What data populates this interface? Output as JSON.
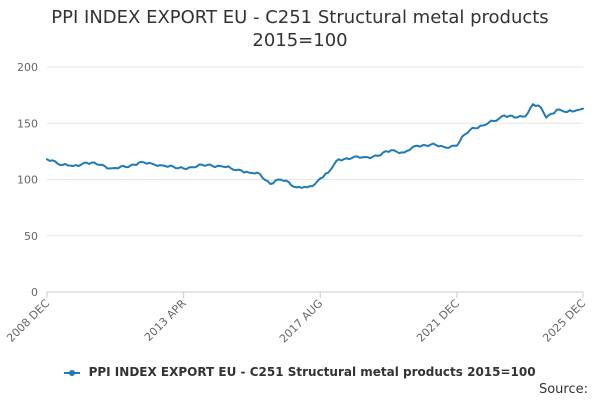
{
  "chart_data": {
    "type": "line",
    "title": "PPI INDEX EXPORT EU - C251 Structural metal products",
    "subtitle": "2015=100",
    "ylim": [
      0,
      200
    ],
    "y_ticks": [
      "0",
      "50",
      "100",
      "150",
      "200"
    ],
    "x_ticks": [
      "2008 DEC",
      "2013 APR",
      "2017 AUG",
      "2021 DEC",
      "2025 DEC"
    ],
    "grid": "horizontal",
    "legend_position": "bottom",
    "series": [
      {
        "name": "PPI INDEX EXPORT EU - C251 Structural metal products 2015=100",
        "color": "#1f7bb6",
        "x": [
          "2008-12",
          "2009-02",
          "2009-06",
          "2009-10",
          "2010-03",
          "2010-08",
          "2011-01",
          "2011-06",
          "2011-11",
          "2012-04",
          "2012-09",
          "2013-02",
          "2013-07",
          "2014-01",
          "2014-06",
          "2014-10",
          "2015-02",
          "2015-05",
          "2015-09",
          "2016-01",
          "2016-04",
          "2016-07",
          "2016-11",
          "2017-03",
          "2017-06",
          "2017-08",
          "2017-11",
          "2018-03",
          "2018-08",
          "2019-01",
          "2019-06",
          "2019-11",
          "2020-04",
          "2020-09",
          "2021-02",
          "2021-07",
          "2021-12",
          "2022-03",
          "2022-06",
          "2022-10",
          "2023-02",
          "2023-06",
          "2023-10",
          "2024-02",
          "2024-05",
          "2024-08",
          "2024-10",
          "2025-02",
          "2025-06",
          "2025-09",
          "2025-12"
        ],
        "values": [
          118,
          117,
          113,
          112,
          115,
          113,
          110,
          111,
          115,
          114,
          112,
          110,
          111,
          113,
          112,
          110,
          108,
          106,
          105,
          96,
          100,
          99,
          93,
          93,
          96,
          101,
          106,
          118,
          119,
          120,
          121,
          126,
          124,
          130,
          131,
          129,
          130,
          140,
          146,
          148,
          152,
          157,
          155,
          156,
          167,
          164,
          155,
          162,
          160,
          161,
          163
        ]
      }
    ]
  },
  "legend": {
    "label": "PPI INDEX EXPORT EU - C251 Structural metal products 2015=100"
  },
  "source": {
    "label": "Source:"
  }
}
